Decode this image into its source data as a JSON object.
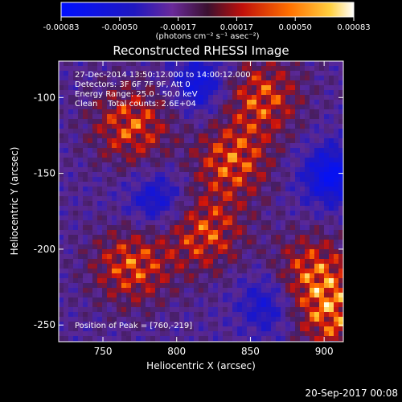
{
  "colorbar": {
    "ticks": [
      "-0.00083",
      "-0.00050",
      "-0.00017",
      "0.00017",
      "0.00050",
      "0.00083"
    ],
    "unit_label": "(photons cm⁻² s⁻¹ asec⁻²)",
    "range": [
      -0.00083,
      0.00083
    ]
  },
  "chart_data": {
    "type": "heatmap",
    "title": "Reconstructed RHESSI Image",
    "xlabel": "Heliocentric X (arcsec)",
    "ylabel": "Heliocentric Y (arcsec)",
    "xlim": [
      720,
      913
    ],
    "ylim": [
      -261,
      -76
    ],
    "x_ticks": [
      750,
      800,
      850,
      900
    ],
    "y_ticks": [
      -100,
      -150,
      -200,
      -250
    ],
    "annotations": [
      "27-Dec-2014 13:50:12.000 to 14:00:12.000",
      "Detectors: 3F 6F 7F 9F, Att 0",
      "Energy Range: 25.0 - 50.0 keV",
      "Clean    Total counts: 2.6E+04"
    ],
    "peak_label": "Position of Peak = [760,-219]",
    "peak": [
      760,
      -219
    ]
  },
  "footer": {
    "timestamp": "20-Sep-2017 00:08"
  }
}
